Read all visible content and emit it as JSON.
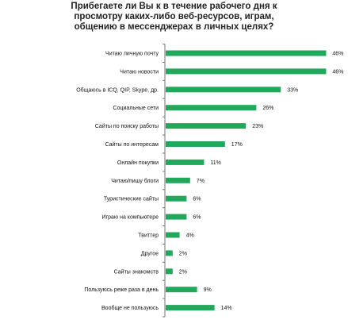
{
  "chart_data": {
    "type": "bar",
    "orientation": "horizontal",
    "title_lines": [
      "Прибегаете ли Вы к в течение рабочего дня к",
      "просмотру каких-либо веб-ресурсов, играм,",
      "общению в мессенджерах в личных целях?"
    ],
    "categories": [
      "Читаю личную почту",
      "Читаю новости",
      "Общаюсь в ICQ, QIP, Skype, др.",
      "Социальные сети",
      "Сайты по поиску работы",
      "Сайты по интересам",
      "Онлайн покупки",
      "Читаю/пишу блоги",
      "Туристические сайты",
      "Играю на компьютере",
      "Твиттер",
      "Другое",
      "Сайты знакомств",
      "Пользуюсь реже раза в день",
      "Вообще не пользуюсь"
    ],
    "values": [
      46,
      46,
      33,
      26,
      23,
      17,
      11,
      7,
      6,
      6,
      4,
      2,
      2,
      9,
      14
    ],
    "value_labels": [
      "46%",
      "46%",
      "33%",
      "26%",
      "23%",
      "17%",
      "11%",
      "7%",
      "6%",
      "6%",
      "4%",
      "2%",
      "2%",
      "9%",
      "14%"
    ],
    "xlim": [
      0,
      50
    ],
    "grid": false,
    "legend": "none",
    "bar_color": "#22a85a",
    "axis_color": "#777777"
  }
}
